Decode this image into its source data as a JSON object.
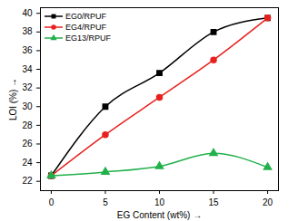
{
  "chart_data": {
    "type": "line",
    "xlabel": "EG Content (wt%)",
    "ylabel": "LOI (%)",
    "x": [
      0,
      5,
      10,
      15,
      20
    ],
    "series": [
      {
        "name": "EG0/RPUF",
        "color": "#000000",
        "marker": "square",
        "values": [
          22.6,
          30,
          33.6,
          38,
          39.5
        ]
      },
      {
        "name": "EG4/RPUF",
        "color": "#e8211e",
        "marker": "circle",
        "values": [
          22.6,
          27,
          31,
          35,
          39.5
        ]
      },
      {
        "name": "EG13/RPUF",
        "color": "#22b04a",
        "marker": "triangle",
        "values": [
          22.6,
          23,
          23.6,
          25,
          23.5
        ]
      }
    ],
    "xlim": [
      -1,
      21
    ],
    "ylim": [
      21,
      40.6
    ],
    "xticks": [
      0,
      5,
      10,
      15,
      20
    ],
    "yticks": [
      22,
      24,
      26,
      28,
      30,
      32,
      34,
      36,
      38,
      40
    ],
    "legend": "top-left",
    "grid": false
  }
}
